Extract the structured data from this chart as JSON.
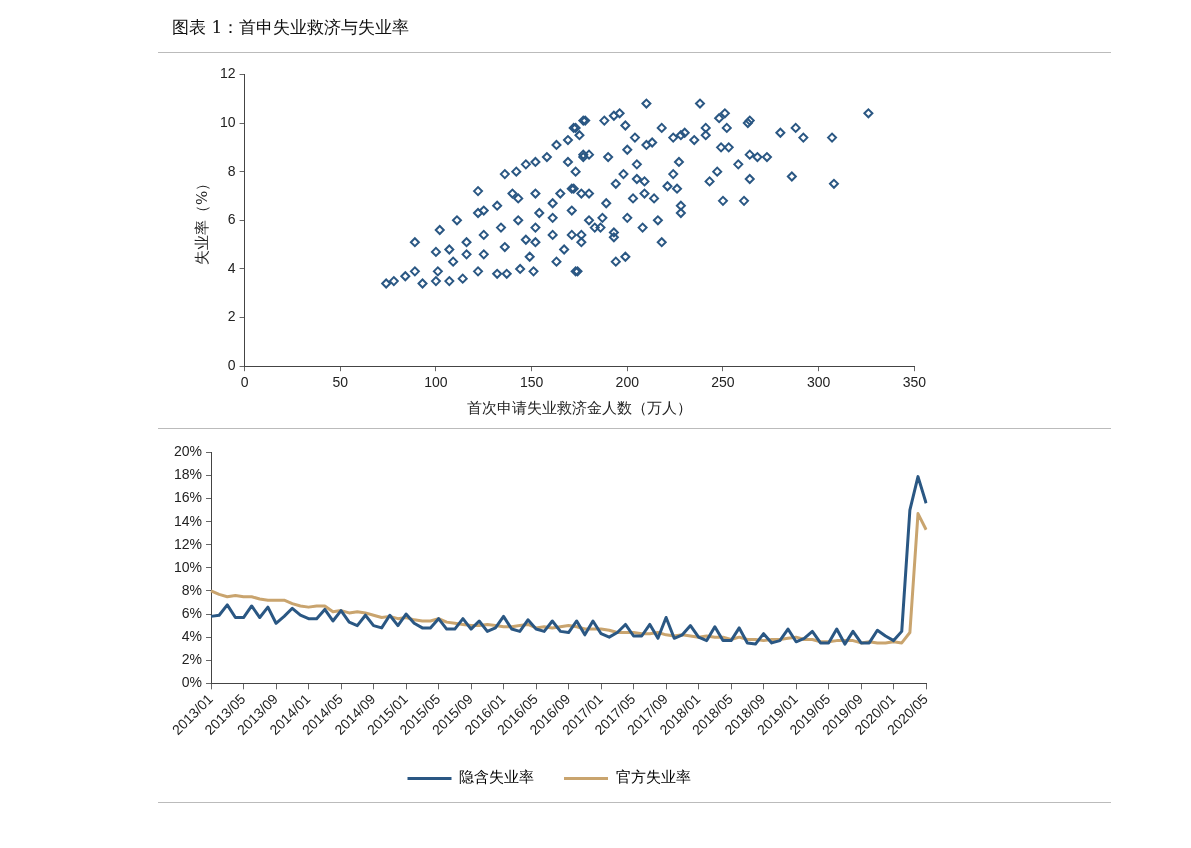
{
  "chart_data": [
    {
      "type": "scatter",
      "title": "图表 1：首申失业救济与失业率",
      "xlabel": "首次申请失业救济金人数（万人）",
      "ylabel": "失业率（%）",
      "x": [
        210,
        238,
        326,
        251,
        248,
        252,
        264,
        263,
        280,
        288,
        292,
        307,
        308,
        286,
        264,
        261,
        250,
        243,
        247,
        258,
        264,
        268,
        273,
        249,
        253,
        241,
        241,
        235,
        228,
        230,
        224,
        218,
        204,
        199,
        196,
        193,
        188,
        178,
        173,
        218,
        199,
        194,
        174,
        227,
        224,
        221,
        226,
        228,
        228,
        214,
        216,
        208,
        200,
        193,
        193,
        205,
        210,
        213,
        200,
        190,
        180,
        177,
        187,
        186,
        176,
        172,
        169,
        205,
        203,
        209,
        74,
        78,
        84,
        89,
        93,
        100,
        89,
        101,
        107,
        114,
        122,
        132,
        137,
        144,
        151,
        173,
        102,
        111,
        122,
        132,
        143,
        152,
        122,
        136,
        142,
        147,
        152,
        158,
        163,
        169,
        172,
        175,
        177,
        177,
        173,
        161,
        154,
        171,
        152,
        149,
        125,
        116,
        109,
        100,
        125,
        134,
        143,
        152,
        161,
        171,
        116,
        107,
        136,
        147,
        161,
        171,
        176,
        140,
        125,
        165,
        180,
        176,
        183,
        167,
        163,
        189,
        194,
        198,
        209,
        180
      ],
      "values": [
        10.8,
        10.8,
        10.4,
        10.4,
        10.2,
        9.8,
        10.1,
        10.0,
        9.6,
        9.8,
        9.4,
        9.4,
        7.5,
        7.8,
        7.7,
        6.8,
        6.8,
        7.6,
        8.0,
        8.3,
        8.7,
        8.6,
        8.6,
        9.0,
        9.0,
        9.8,
        9.5,
        9.3,
        9.5,
        9.6,
        9.4,
        9.8,
        9.4,
        9.9,
        10.4,
        10.3,
        10.1,
        10.1,
        9.8,
        5.1,
        4.5,
        4.3,
        3.9,
        8.4,
        7.9,
        7.4,
        7.3,
        6.6,
        6.3,
        6.9,
        6.0,
        5.7,
        6.1,
        5.5,
        5.3,
        8.3,
        9.1,
        9.2,
        8.9,
        8.6,
        8.7,
        8.7,
        6.1,
        5.7,
        7.1,
        7.3,
        8.4,
        7.7,
        6.9,
        7.1,
        3.4,
        3.5,
        3.7,
        3.9,
        3.4,
        3.5,
        5.1,
        3.9,
        3.5,
        3.6,
        3.9,
        3.8,
        3.8,
        4.0,
        3.9,
        3.9,
        5.6,
        6.0,
        6.3,
        6.6,
        6.9,
        7.1,
        7.2,
        7.9,
        8.0,
        8.3,
        8.4,
        8.6,
        9.1,
        9.3,
        9.8,
        9.5,
        10.1,
        8.6,
        8.0,
        6.7,
        6.3,
        7.3,
        5.1,
        4.5,
        4.6,
        4.6,
        4.3,
        4.7,
        5.4,
        5.7,
        6.0,
        5.7,
        6.1,
        6.4,
        5.1,
        4.8,
        4.9,
        5.2,
        5.4,
        5.4,
        5.1,
        7.1,
        6.4,
        7.1,
        6.0,
        5.4,
        5.7,
        4.8,
        4.3,
        6.7,
        7.5,
        7.9,
        7.6,
        7.1
      ],
      "color": "#2a5783",
      "marker": "diamond",
      "xlim": [
        0,
        350
      ],
      "xticks": [
        0,
        50,
        100,
        150,
        200,
        250,
        300,
        350
      ],
      "ylim": [
        0,
        12
      ],
      "yticks": [
        0,
        2,
        4,
        6,
        8,
        10,
        12
      ],
      "grid": false,
      "legend": false
    },
    {
      "type": "line",
      "marker": "none",
      "grid": false,
      "legend": "bottom",
      "categories": [
        "2013/01",
        null,
        null,
        null,
        "2013/05",
        null,
        null,
        null,
        "2013/09",
        null,
        null,
        null,
        "2014/01",
        null,
        null,
        null,
        "2014/05",
        null,
        null,
        null,
        "2014/09",
        null,
        null,
        null,
        "2015/01",
        null,
        null,
        null,
        "2015/05",
        null,
        null,
        null,
        "2015/09",
        null,
        null,
        null,
        "2016/01",
        null,
        null,
        null,
        "2016/05",
        null,
        null,
        null,
        "2016/09",
        null,
        null,
        null,
        "2017/01",
        null,
        null,
        null,
        "2017/05",
        null,
        null,
        null,
        "2017/09",
        null,
        null,
        null,
        "2018/01",
        null,
        null,
        null,
        "2018/05",
        null,
        null,
        null,
        "2018/09",
        null,
        null,
        null,
        "2019/01",
        null,
        null,
        null,
        "2019/05",
        null,
        null,
        null,
        "2019/09",
        null,
        null,
        null,
        "2020/01",
        null,
        null,
        null,
        "2020/05"
      ],
      "series": [
        {
          "name": "隐含失业率",
          "color": "#2a5783",
          "values": [
            5.8,
            5.9,
            6.8,
            5.7,
            5.7,
            6.7,
            5.7,
            6.6,
            5.2,
            5.8,
            6.5,
            5.9,
            5.6,
            5.6,
            6.4,
            5.4,
            6.3,
            5.3,
            5.0,
            5.9,
            5.0,
            4.8,
            5.9,
            5.0,
            6.0,
            5.2,
            4.8,
            4.8,
            5.6,
            4.7,
            4.7,
            5.6,
            4.7,
            5.4,
            4.5,
            4.8,
            5.8,
            4.7,
            4.5,
            5.5,
            4.7,
            4.5,
            5.4,
            4.5,
            4.4,
            5.4,
            4.2,
            5.4,
            4.3,
            4.0,
            4.4,
            5.1,
            4.1,
            4.1,
            5.1,
            3.9,
            5.7,
            3.9,
            4.2,
            5.0,
            4.0,
            3.7,
            4.9,
            3.7,
            3.7,
            4.8,
            3.5,
            3.4,
            4.3,
            3.5,
            3.7,
            4.7,
            3.6,
            3.9,
            4.5,
            3.5,
            3.5,
            4.7,
            3.4,
            4.5,
            3.5,
            3.5,
            4.6,
            4.1,
            3.7,
            4.5,
            15.0,
            17.9,
            15.6
          ]
        },
        {
          "name": "官方失业率",
          "color": "#c9a46e",
          "values": [
            8.0,
            7.7,
            7.5,
            7.6,
            7.5,
            7.5,
            7.3,
            7.2,
            7.2,
            7.2,
            6.9,
            6.7,
            6.6,
            6.7,
            6.7,
            6.2,
            6.3,
            6.1,
            6.2,
            6.1,
            5.9,
            5.7,
            5.8,
            5.6,
            5.7,
            5.5,
            5.4,
            5.4,
            5.6,
            5.3,
            5.2,
            5.1,
            5.0,
            5.0,
            5.1,
            5.0,
            4.9,
            4.9,
            5.0,
            5.1,
            4.8,
            4.9,
            4.8,
            4.9,
            5.0,
            4.9,
            4.7,
            4.7,
            4.7,
            4.6,
            4.4,
            4.4,
            4.4,
            4.3,
            4.3,
            4.4,
            4.2,
            4.1,
            4.2,
            4.1,
            4.0,
            4.1,
            4.0,
            4.0,
            3.8,
            4.0,
            3.8,
            3.8,
            3.7,
            3.8,
            3.8,
            3.9,
            4.0,
            3.8,
            3.8,
            3.6,
            3.6,
            3.7,
            3.7,
            3.7,
            3.5,
            3.6,
            3.5,
            3.5,
            3.6,
            3.5,
            4.4,
            14.7,
            13.3
          ]
        }
      ],
      "ylim": [
        0,
        20
      ],
      "yticks": [
        {
          "value": 0,
          "label": "0%"
        },
        {
          "value": 2,
          "label": "2%"
        },
        {
          "value": 4,
          "label": "4%"
        },
        {
          "value": 6,
          "label": "6%"
        },
        {
          "value": 8,
          "label": "8%"
        },
        {
          "value": 10,
          "label": "10%"
        },
        {
          "value": 12,
          "label": "12%"
        },
        {
          "value": 14,
          "label": "14%"
        },
        {
          "value": 16,
          "label": "16%"
        },
        {
          "value": 18,
          "label": "18%"
        },
        {
          "value": 20,
          "label": "20%"
        }
      ]
    }
  ]
}
